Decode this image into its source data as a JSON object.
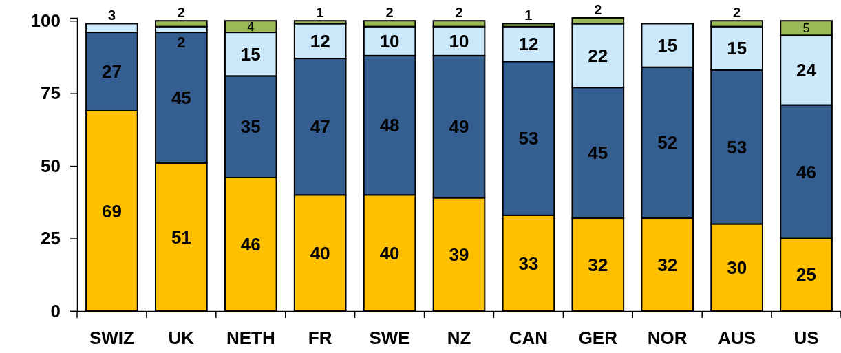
{
  "chart_data": {
    "type": "bar",
    "stacked": true,
    "data_labels": true,
    "categories": [
      "SWIZ",
      "UK",
      "NETH",
      "FR",
      "SWE",
      "NZ",
      "CAN",
      "GER",
      "NOR",
      "AUS",
      "US"
    ],
    "series": [
      {
        "color": "#ffc000",
        "values": [
          69,
          51,
          46,
          40,
          40,
          39,
          33,
          32,
          32,
          30,
          25
        ]
      },
      {
        "color": "#365f91",
        "values": [
          27,
          45,
          35,
          47,
          48,
          49,
          53,
          45,
          52,
          53,
          46
        ]
      },
      {
        "color": "#cce9fb",
        "values": [
          3,
          2,
          15,
          12,
          10,
          10,
          12,
          22,
          15,
          15,
          24
        ]
      },
      {
        "color": "#9bbb59",
        "values": [
          null,
          2,
          4,
          1,
          2,
          2,
          1,
          2,
          null,
          2,
          5
        ]
      }
    ],
    "ylim": [
      0,
      101
    ],
    "yticks": [
      0,
      25,
      50,
      75,
      100
    ],
    "grid": false,
    "legend": false
  }
}
